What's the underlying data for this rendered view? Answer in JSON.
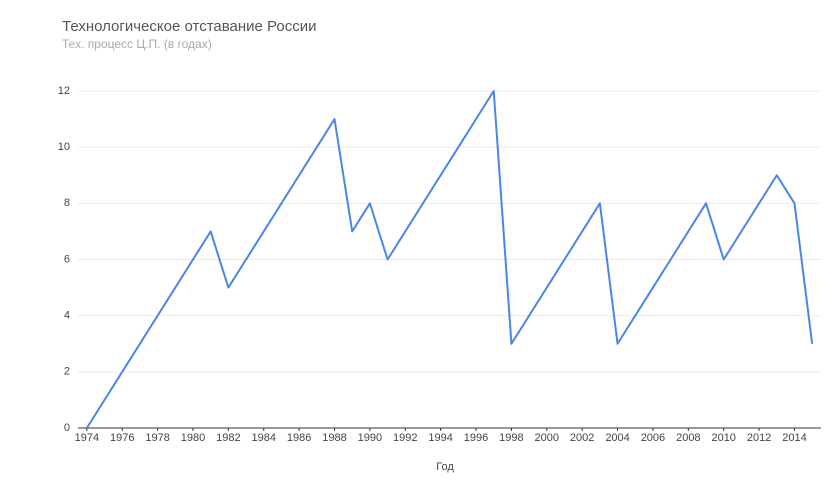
{
  "chart_data": {
    "type": "line",
    "title": "Технологическое отставание России",
    "subtitle": "Тех. процесс Ц.П. (в годах)",
    "x_label": "Год",
    "x": [
      1974,
      1981,
      1982,
      1988,
      1989,
      1990,
      1991,
      1997,
      1998,
      2003,
      2004,
      2009,
      2010,
      2013,
      2014,
      2015
    ],
    "values": [
      0,
      7,
      5,
      11,
      7,
      8,
      6,
      12,
      3,
      8,
      3,
      8,
      6,
      9,
      8,
      3
    ],
    "color": "#4a86e8",
    "xlim": [
      1973.5,
      2015.5
    ],
    "xticks": [
      1974,
      1976,
      1978,
      1980,
      1982,
      1984,
      1986,
      1988,
      1990,
      1992,
      1994,
      1996,
      1998,
      2000,
      2002,
      2004,
      2006,
      2008,
      2010,
      2012,
      2014
    ],
    "ylim": [
      0,
      12
    ],
    "yticks": [
      0,
      2,
      4,
      6,
      8,
      10,
      12
    ],
    "grid": true
  }
}
